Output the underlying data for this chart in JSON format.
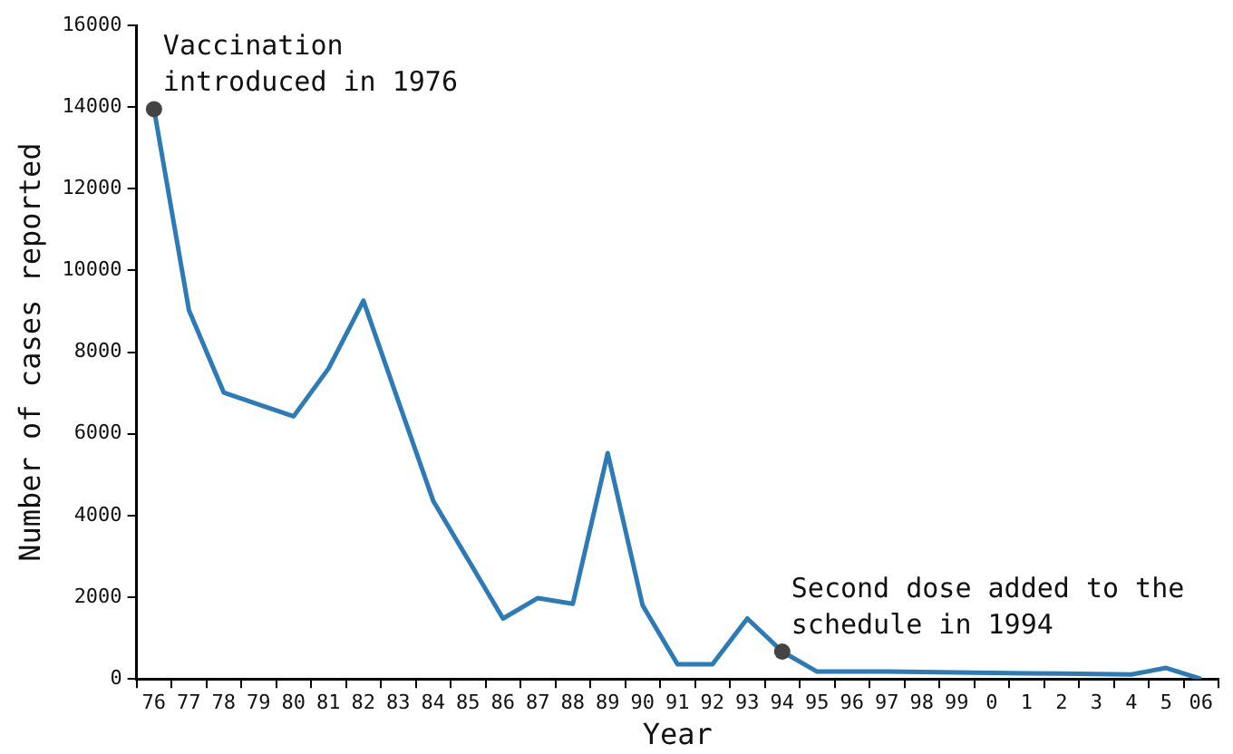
{
  "chart_data": {
    "type": "line",
    "xlabel": "Year",
    "ylabel": "Number of cases reported",
    "categories": [
      "76",
      "77",
      "78",
      "79",
      "80",
      "81",
      "82",
      "83",
      "84",
      "85",
      "86",
      "87",
      "88",
      "89",
      "90",
      "91",
      "92",
      "93",
      "94",
      "95",
      "96",
      "97",
      "98",
      "99",
      "0",
      "1",
      "2",
      "3",
      "4",
      "5",
      "06"
    ],
    "series": [
      {
        "color": "#2c7bb6",
        "values": [
          13950,
          9030,
          7010,
          6720,
          6430,
          7600,
          9260,
          6800,
          4360,
          2920,
          1480,
          1980,
          1840,
          5530,
          1800,
          360,
          360,
          1480,
          670,
          180,
          180,
          180,
          170,
          160,
          150,
          140,
          130,
          120,
          110,
          270,
          0
        ]
      }
    ],
    "ylim": [
      0,
      16000
    ],
    "yticks": [
      0,
      2000,
      4000,
      6000,
      8000,
      10000,
      12000,
      14000,
      16000
    ],
    "grid": false,
    "legend": false,
    "marker": "none",
    "line_style": "solid",
    "annotations": [
      {
        "text": "Vaccination\nintroduced in 1976",
        "x": "76",
        "y": 13950
      },
      {
        "text": "Second dose added to the\nschedule in 1994",
        "x": "94",
        "y": 670
      }
    ]
  }
}
